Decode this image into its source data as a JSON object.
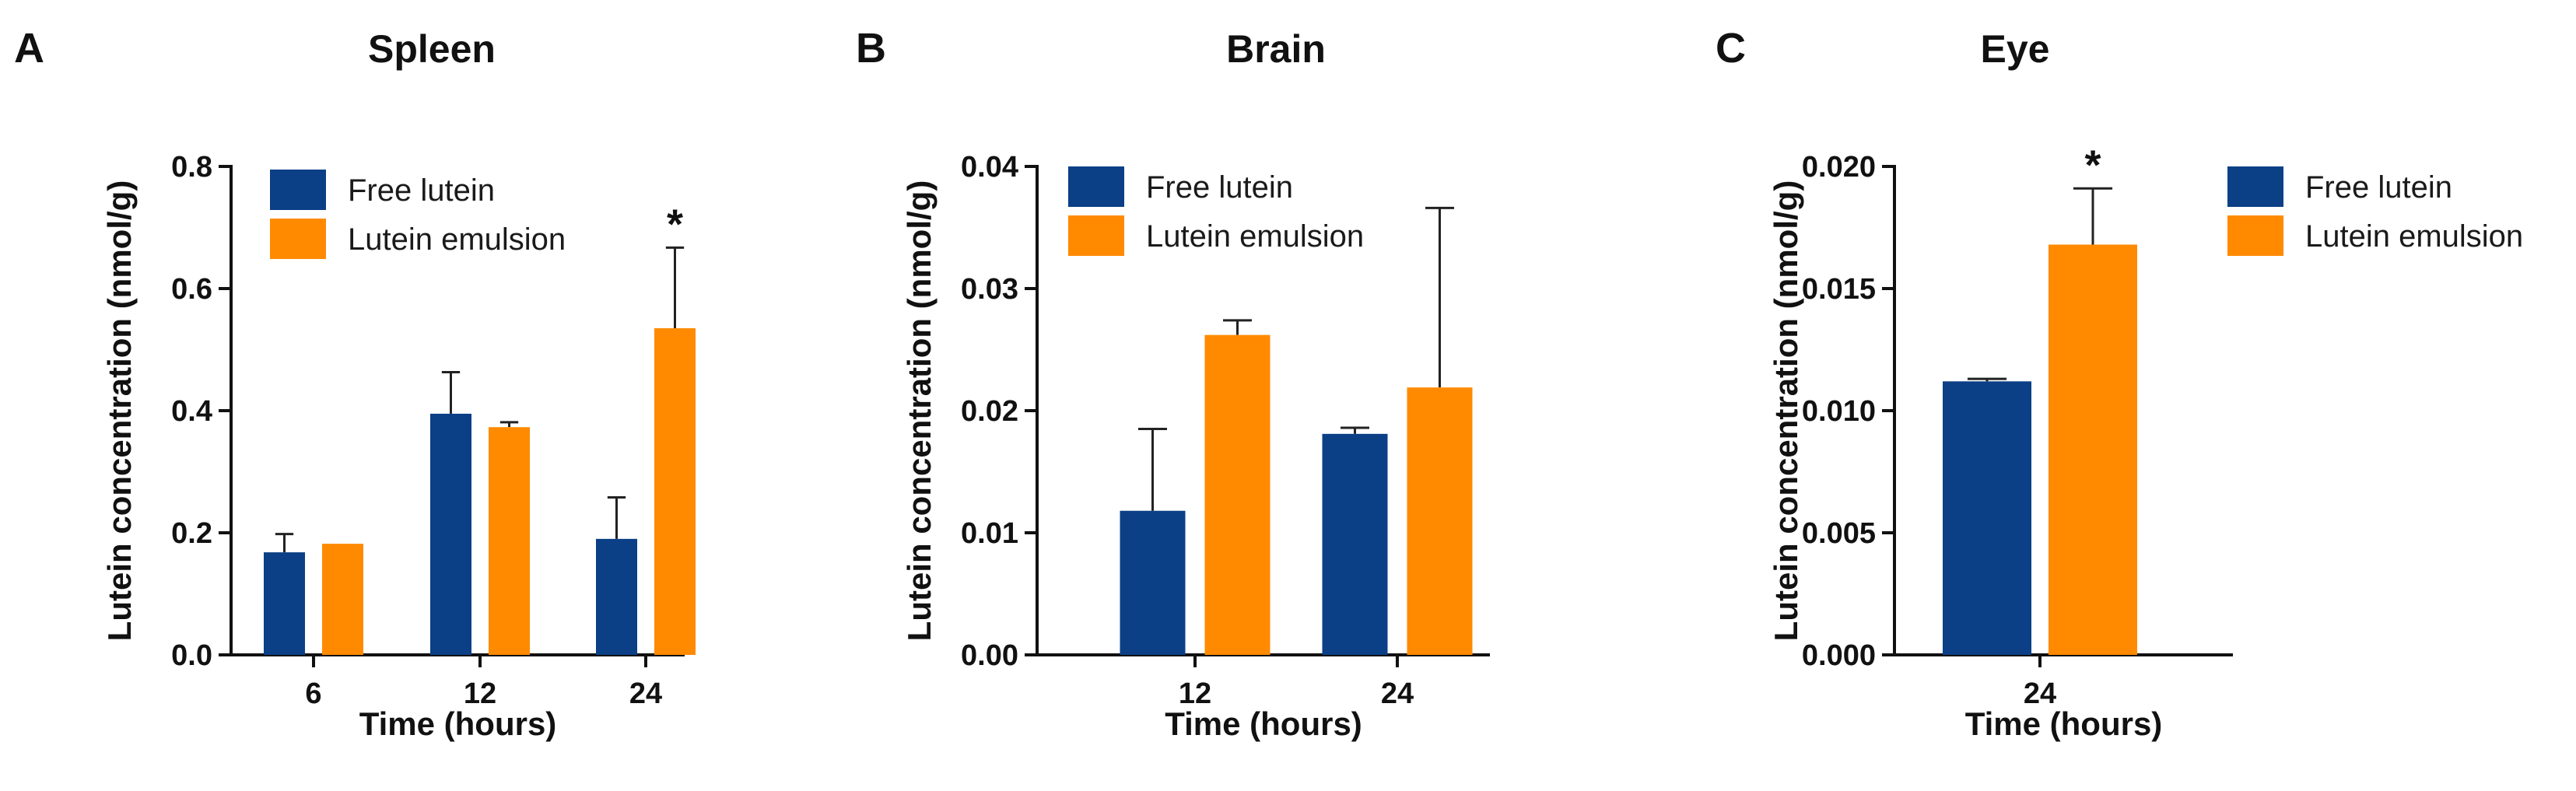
{
  "colors": {
    "free_lutein": "#0b3f86",
    "lutein_emulsion": "#ff8a00"
  },
  "chart_data": [
    {
      "panel": "A",
      "type": "bar",
      "title": "Spleen",
      "xlabel": "Time (hours)",
      "ylabel": "Lutein concentration (nmol/g)",
      "categories": [
        "6",
        "12",
        "24"
      ],
      "ylim": [
        0,
        0.8
      ],
      "yticks": [
        "0.0",
        "0.2",
        "0.4",
        "0.6",
        "0.8"
      ],
      "legend": {
        "placement": "top-left"
      },
      "series": [
        {
          "name": "Free lutein",
          "color": "#0b3f86",
          "values": [
            0.168,
            0.395,
            0.19
          ],
          "errors": [
            0.03,
            0.068,
            0.068
          ]
        },
        {
          "name": "Lutein emulsion",
          "color": "#ff8a00",
          "values": [
            0.182,
            0.373,
            0.535
          ],
          "errors": [
            0,
            0.008,
            0.132
          ]
        }
      ],
      "annotations": [
        {
          "text": "*",
          "category": "24",
          "series": "Lutein emulsion"
        }
      ]
    },
    {
      "panel": "B",
      "type": "bar",
      "title": "Brain",
      "xlabel": "Time (hours)",
      "ylabel": "Lutein concentration (nmol/g)",
      "categories": [
        "12",
        "24"
      ],
      "ylim": [
        0,
        0.04
      ],
      "yticks": [
        "0.00",
        "0.01",
        "0.02",
        "0.03",
        "0.04"
      ],
      "legend": {
        "placement": "top-left"
      },
      "series": [
        {
          "name": "Free lutein",
          "color": "#0b3f86",
          "values": [
            0.0118,
            0.0181
          ],
          "errors": [
            0.0067,
            0.0005
          ]
        },
        {
          "name": "Lutein emulsion",
          "color": "#ff8a00",
          "values": [
            0.0262,
            0.0219
          ],
          "errors": [
            0.0012,
            0.0147
          ]
        }
      ],
      "annotations": []
    },
    {
      "panel": "C",
      "type": "bar",
      "title": "Eye",
      "xlabel": "Time (hours)",
      "ylabel": "Lutein concentration (nmol/g)",
      "categories": [
        "24"
      ],
      "ylim": [
        0,
        0.02
      ],
      "yticks": [
        "0.000",
        "0.005",
        "0.010",
        "0.015",
        "0.020"
      ],
      "legend": {
        "placement": "top-right"
      },
      "series": [
        {
          "name": "Free lutein",
          "color": "#0b3f86",
          "values": [
            0.0112
          ],
          "errors": [
            0.0001
          ]
        },
        {
          "name": "Lutein emulsion",
          "color": "#ff8a00",
          "values": [
            0.0168
          ],
          "errors": [
            0.0023
          ]
        }
      ],
      "annotations": [
        {
          "text": "*",
          "category": "24",
          "series": "Lutein emulsion"
        }
      ]
    }
  ]
}
